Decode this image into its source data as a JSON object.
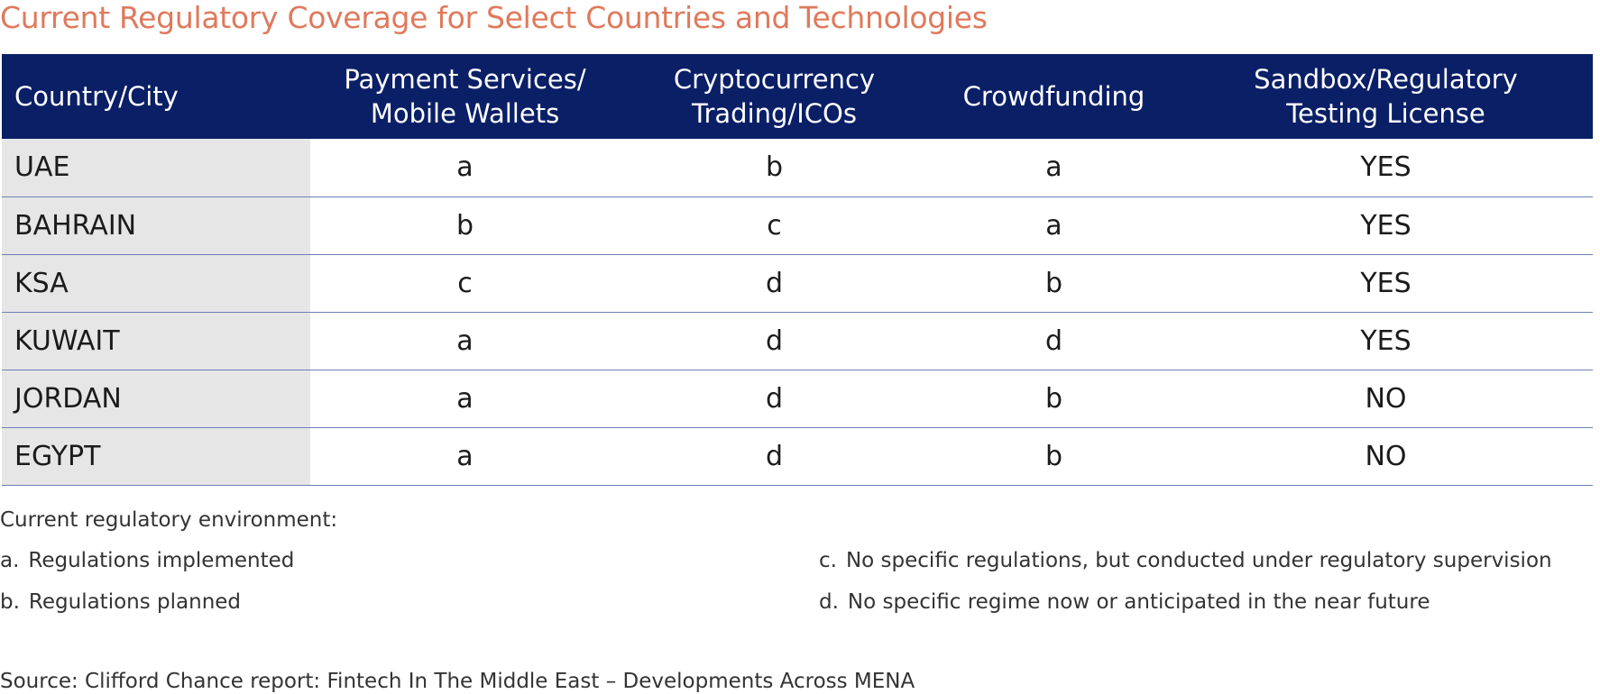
{
  "title": "Current Regulatory Coverage for Select Countries and Technologies",
  "table": {
    "headers": [
      [
        "Country/City"
      ],
      [
        "Payment Services/",
        "Mobile Wallets"
      ],
      [
        "Cryptocurrency",
        "Trading/ICOs"
      ],
      [
        "Crowdfunding"
      ],
      [
        "Sandbox/Regulatory",
        "Testing License"
      ]
    ],
    "rows": [
      [
        "UAE",
        "a",
        "b",
        "a",
        "YES"
      ],
      [
        "BAHRAIN",
        "b",
        "c",
        "a",
        "YES"
      ],
      [
        "KSA",
        "c",
        "d",
        "b",
        "YES"
      ],
      [
        "KUWAIT",
        "a",
        "d",
        "d",
        "YES"
      ],
      [
        "JORDAN",
        "a",
        "d",
        "b",
        "NO"
      ],
      [
        "EGYPT",
        "a",
        "d",
        "b",
        "NO"
      ]
    ]
  },
  "legend": {
    "heading": "Current regulatory environment:",
    "items": [
      {
        "key": "a.",
        "text": "Regulations implemented"
      },
      {
        "key": "b.",
        "text": "Regulations planned"
      },
      {
        "key": "c.",
        "text": "No specific regulations, but conducted under regulatory supervision"
      },
      {
        "key": "d.",
        "text": "No specific regime now or anticipated in the near future"
      }
    ]
  },
  "source": "Source: Clifford Chance report: Fintech In The Middle East – Developments Across MENA",
  "colors": {
    "title": "#e0795c",
    "header_bg": "#0a1f66",
    "first_column_bg": "#e6e6e6",
    "row_divider": "#6d7fb4"
  }
}
